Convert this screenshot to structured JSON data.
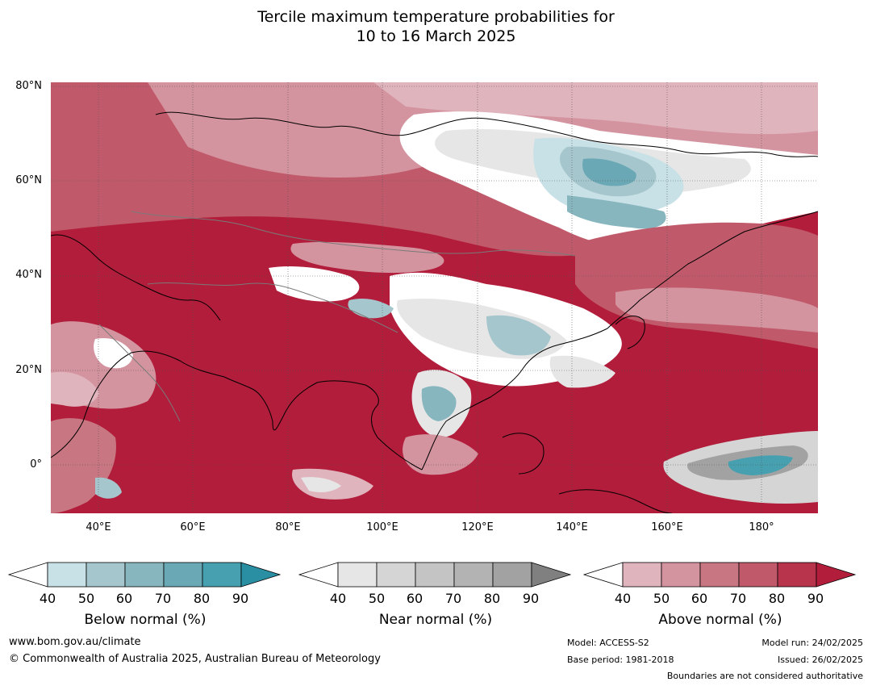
{
  "title_line1": "Tercile maximum temperature probabilities for",
  "title_line2": "10 to 16 March 2025",
  "map": {
    "lat_labels": [
      "80°N",
      "60°N",
      "40°N",
      "20°N",
      "0°"
    ],
    "lon_labels": [
      "40°E",
      "60°E",
      "80°E",
      "100°E",
      "120°E",
      "140°E",
      "160°E",
      "180°"
    ]
  },
  "legend": {
    "below": {
      "label": "Below normal (%)",
      "ticks": [
        "40",
        "50",
        "60",
        "70",
        "80",
        "90"
      ],
      "colors": [
        "#ffffff",
        "#c8e1e7",
        "#a5c6cc",
        "#87b6bf",
        "#6ba8b5",
        "#47a0b0",
        "#2a8fa3"
      ]
    },
    "near": {
      "label": "Near normal (%)",
      "ticks": [
        "40",
        "50",
        "60",
        "70",
        "80",
        "90"
      ],
      "colors": [
        "#ffffff",
        "#e6e6e6",
        "#d5d5d5",
        "#c4c4c4",
        "#b3b3b3",
        "#a2a2a2",
        "#808080"
      ]
    },
    "above": {
      "label": "Above normal (%)",
      "ticks": [
        "40",
        "50",
        "60",
        "70",
        "80",
        "90"
      ],
      "colors": [
        "#ffffff",
        "#e0b4bd",
        "#d4949f",
        "#c87782",
        "#c05a6b",
        "#b8344c",
        "#b11d3a"
      ]
    }
  },
  "footer": {
    "website": "www.bom.gov.au/climate",
    "copyright": "© Commonwealth of Australia 2025, Australian Bureau of Meteorology",
    "model": "Model: ACCESS-S2",
    "base_period": "Base period: 1981-2018",
    "model_run": "Model run: 24/02/2025",
    "issued": "Issued: 26/02/2025",
    "disclaimer": "Boundaries are not considered authoritative"
  }
}
